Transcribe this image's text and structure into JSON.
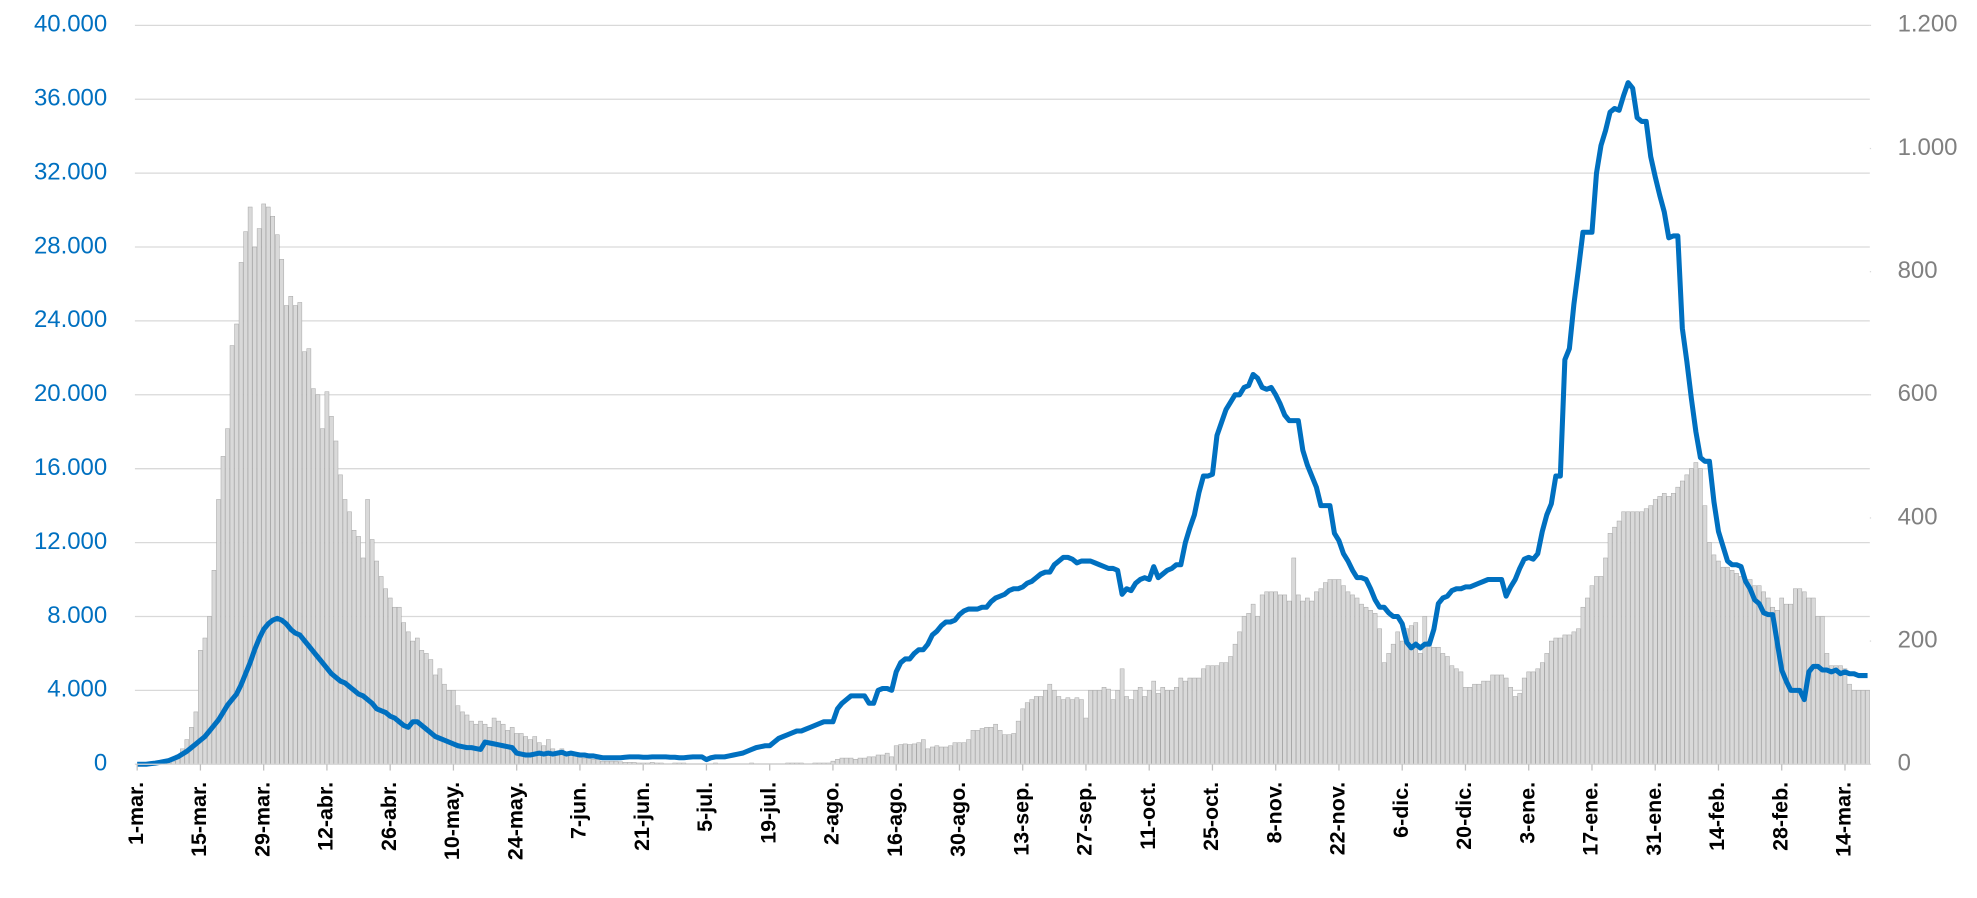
{
  "chart_data": {
    "type": "bar_line",
    "categories": [
      "1-mar.",
      null,
      null,
      null,
      null,
      null,
      null,
      null,
      null,
      null,
      null,
      null,
      null,
      null,
      "15-mar.",
      null,
      null,
      null,
      null,
      null,
      null,
      null,
      null,
      null,
      null,
      null,
      null,
      null,
      "29-mar.",
      null,
      null,
      null,
      null,
      null,
      null,
      null,
      null,
      null,
      null,
      null,
      null,
      null,
      "12-abr.",
      null,
      null,
      null,
      null,
      null,
      null,
      null,
      null,
      null,
      null,
      null,
      null,
      null,
      "26-abr.",
      null,
      null,
      null,
      null,
      null,
      null,
      null,
      null,
      null,
      null,
      null,
      null,
      null,
      "10-may.",
      null,
      null,
      null,
      null,
      null,
      null,
      null,
      null,
      null,
      null,
      null,
      null,
      null,
      "24-may.",
      null,
      null,
      null,
      null,
      null,
      null,
      null,
      null,
      null,
      null,
      null,
      null,
      null,
      "7-jun.",
      null,
      null,
      null,
      null,
      null,
      null,
      null,
      null,
      null,
      null,
      null,
      null,
      null,
      "21-jun.",
      null,
      null,
      null,
      null,
      null,
      null,
      null,
      null,
      null,
      null,
      null,
      null,
      null,
      "5-jul.",
      null,
      null,
      null,
      null,
      null,
      null,
      null,
      null,
      null,
      null,
      null,
      null,
      null,
      "19-jul.",
      null,
      null,
      null,
      null,
      null,
      null,
      null,
      null,
      null,
      null,
      null,
      null,
      null,
      "2-ago.",
      null,
      null,
      null,
      null,
      null,
      null,
      null,
      null,
      null,
      null,
      null,
      null,
      null,
      "16-ago.",
      null,
      null,
      null,
      null,
      null,
      null,
      null,
      null,
      null,
      null,
      null,
      null,
      null,
      "30-ago.",
      null,
      null,
      null,
      null,
      null,
      null,
      null,
      null,
      null,
      null,
      null,
      null,
      null,
      "13-sep.",
      null,
      null,
      null,
      null,
      null,
      null,
      null,
      null,
      null,
      null,
      null,
      null,
      null,
      "27-sep.",
      null,
      null,
      null,
      null,
      null,
      null,
      null,
      null,
      null,
      null,
      null,
      null,
      null,
      "11-oct.",
      null,
      null,
      null,
      null,
      null,
      null,
      null,
      null,
      null,
      null,
      null,
      null,
      null,
      "25-oct.",
      null,
      null,
      null,
      null,
      null,
      null,
      null,
      null,
      null,
      null,
      null,
      null,
      null,
      "8-nov.",
      null,
      null,
      null,
      null,
      null,
      null,
      null,
      null,
      null,
      null,
      null,
      null,
      null,
      "22-nov.",
      null,
      null,
      null,
      null,
      null,
      null,
      null,
      null,
      null,
      null,
      null,
      null,
      null,
      "6-dic.",
      null,
      null,
      null,
      null,
      null,
      null,
      null,
      null,
      null,
      null,
      null,
      null,
      null,
      "20-dic.",
      null,
      null,
      null,
      null,
      null,
      null,
      null,
      null,
      null,
      null,
      null,
      null,
      null,
      "3-ene.",
      null,
      null,
      null,
      null,
      null,
      null,
      null,
      null,
      null,
      null,
      null,
      null,
      null,
      "17-ene.",
      null,
      null,
      null,
      null,
      null,
      null,
      null,
      null,
      null,
      null,
      null,
      null,
      null,
      "31-ene.",
      null,
      null,
      null,
      null,
      null,
      null,
      null,
      null,
      null,
      null,
      null,
      null,
      null,
      "14-feb.",
      null,
      null,
      null,
      null,
      null,
      null,
      null,
      null,
      null,
      null,
      null,
      null,
      null,
      "28-feb.",
      null,
      null,
      null,
      null,
      null,
      null,
      null,
      null,
      null,
      null,
      null,
      null,
      null,
      "14-mar.",
      null,
      null,
      null,
      null,
      null
    ],
    "series": [
      {
        "type": "bar",
        "axis": "y2",
        "color": "#d9d9d9",
        "values": [
          0,
          0,
          0,
          0,
          0,
          0,
          0,
          2,
          5,
          15,
          25,
          40,
          60,
          85,
          185,
          205,
          240,
          315,
          430,
          500,
          545,
          680,
          715,
          815,
          865,
          905,
          840,
          870,
          910,
          905,
          890,
          860,
          820,
          745,
          760,
          745,
          750,
          670,
          675,
          610,
          600,
          545,
          605,
          565,
          525,
          470,
          430,
          410,
          380,
          370,
          335,
          430,
          365,
          330,
          305,
          285,
          270,
          255,
          255,
          230,
          215,
          200,
          205,
          185,
          180,
          170,
          145,
          155,
          130,
          120,
          120,
          95,
          85,
          80,
          70,
          65,
          70,
          65,
          60,
          75,
          70,
          65,
          55,
          60,
          50,
          50,
          45,
          40,
          45,
          35,
          30,
          40,
          25,
          20,
          25,
          20,
          15,
          15,
          12,
          10,
          10,
          8,
          8,
          5,
          5,
          5,
          5,
          4,
          3,
          3,
          3,
          2,
          2,
          2,
          3,
          2,
          2,
          1,
          1,
          2,
          2,
          2,
          1,
          1,
          1,
          1,
          1,
          1,
          2,
          1,
          1,
          1,
          1,
          1,
          1,
          1,
          2,
          1,
          1,
          1,
          1,
          1,
          1,
          1,
          2,
          2,
          2,
          2,
          1,
          1,
          2,
          2,
          2,
          2,
          5,
          8,
          10,
          10,
          10,
          8,
          10,
          10,
          12,
          12,
          15,
          15,
          18,
          12,
          30,
          32,
          33,
          32,
          33,
          35,
          40,
          25,
          28,
          30,
          28,
          28,
          30,
          35,
          35,
          35,
          40,
          55,
          55,
          58,
          60,
          60,
          65,
          55,
          48,
          48,
          50,
          70,
          90,
          100,
          105,
          110,
          110,
          120,
          130,
          120,
          110,
          105,
          108,
          105,
          108,
          105,
          75,
          120,
          120,
          120,
          125,
          122,
          105,
          120,
          155,
          110,
          105,
          120,
          125,
          110,
          120,
          135,
          115,
          125,
          120,
          120,
          125,
          140,
          135,
          140,
          140,
          140,
          155,
          160,
          160,
          160,
          165,
          165,
          175,
          195,
          215,
          240,
          245,
          260,
          240,
          275,
          280,
          280,
          280,
          275,
          275,
          265,
          335,
          275,
          265,
          270,
          265,
          280,
          285,
          295,
          300,
          300,
          300,
          290,
          280,
          275,
          270,
          260,
          255,
          250,
          245,
          220,
          165,
          180,
          195,
          215,
          200,
          220,
          225,
          230,
          180,
          240,
          200,
          190,
          190,
          180,
          175,
          160,
          155,
          150,
          125,
          125,
          130,
          130,
          135,
          135,
          145,
          145,
          145,
          140,
          125,
          110,
          115,
          140,
          150,
          150,
          155,
          165,
          180,
          200,
          205,
          205,
          210,
          210,
          215,
          220,
          255,
          270,
          290,
          305,
          305,
          335,
          375,
          385,
          395,
          410,
          410,
          410,
          410,
          410,
          415,
          420,
          430,
          435,
          440,
          435,
          440,
          450,
          460,
          470,
          480,
          490,
          480,
          420,
          360,
          340,
          330,
          320,
          320,
          315,
          310,
          305,
          300,
          300,
          290,
          290,
          280,
          270,
          255,
          250,
          270,
          260,
          260,
          285,
          285,
          280,
          270,
          270,
          240,
          240,
          180,
          160,
          160,
          160,
          155,
          130,
          120,
          120,
          120,
          120
        ]
      },
      {
        "type": "line",
        "axis": "y",
        "color": "#0070c0",
        "values": [
          0,
          0,
          0,
          30,
          60,
          100,
          150,
          200,
          300,
          400,
          550,
          700,
          900,
          1100,
          1300,
          1500,
          1800,
          2100,
          2400,
          2800,
          3200,
          3500,
          3800,
          4300,
          4900,
          5500,
          6200,
          6800,
          7300,
          7600,
          7800,
          7900,
          7800,
          7600,
          7300,
          7100,
          7000,
          6700,
          6400,
          6100,
          5800,
          5500,
          5200,
          4900,
          4700,
          4500,
          4400,
          4200,
          4000,
          3800,
          3700,
          3500,
          3300,
          3000,
          2900,
          2800,
          2600,
          2500,
          2300,
          2100,
          2000,
          2300,
          2300,
          2100,
          1900,
          1700,
          1500,
          1400,
          1300,
          1200,
          1100,
          1000,
          950,
          900,
          900,
          850,
          800,
          1200,
          1150,
          1100,
          1050,
          1000,
          950,
          900,
          600,
          550,
          500,
          500,
          550,
          600,
          550,
          600,
          550,
          600,
          650,
          550,
          600,
          550,
          500,
          500,
          450,
          450,
          400,
          350,
          350,
          350,
          350,
          350,
          380,
          400,
          400,
          400,
          380,
          380,
          400,
          400,
          400,
          400,
          380,
          380,
          350,
          350,
          380,
          400,
          400,
          400,
          250,
          350,
          400,
          400,
          400,
          450,
          500,
          550,
          600,
          700,
          800,
          900,
          950,
          1000,
          1000,
          1200,
          1400,
          1500,
          1600,
          1700,
          1800,
          1800,
          1900,
          2000,
          2100,
          2200,
          2300,
          2300,
          2300,
          3000,
          3300,
          3500,
          3700,
          3700,
          3700,
          3700,
          3300,
          3300,
          4000,
          4100,
          4100,
          4000,
          5000,
          5500,
          5700,
          5700,
          6000,
          6200,
          6200,
          6500,
          7000,
          7200,
          7500,
          7700,
          7700,
          7800,
          8100,
          8300,
          8400,
          8400,
          8400,
          8500,
          8500,
          8800,
          9000,
          9100,
          9200,
          9400,
          9500,
          9500,
          9600,
          9800,
          9900,
          10100,
          10300,
          10400,
          10400,
          10800,
          11000,
          11200,
          11200,
          11100,
          10900,
          11000,
          11000,
          11000,
          10900,
          10800,
          10700,
          10600,
          10600,
          10500,
          9200,
          9500,
          9400,
          9800,
          10000,
          10100,
          10000,
          10700,
          10100,
          10300,
          10500,
          10600,
          10800,
          10800,
          12000,
          12800,
          13500,
          14700,
          15600,
          15600,
          15700,
          17800,
          18500,
          19200,
          19600,
          20000,
          20000,
          20400,
          20500,
          21100,
          20900,
          20400,
          20300,
          20400,
          20000,
          19500,
          18900,
          18600,
          18600,
          18600,
          17000,
          16200,
          15600,
          15000,
          14000,
          14000,
          14000,
          12500,
          12100,
          11400,
          11000,
          10500,
          10100,
          10100,
          10000,
          9500,
          8900,
          8500,
          8500,
          8200,
          8000,
          8000,
          7600,
          6600,
          6300,
          6500,
          6300,
          6500,
          6500,
          7300,
          8700,
          9000,
          9100,
          9400,
          9500,
          9500,
          9600,
          9600,
          9700,
          9800,
          9900,
          10000,
          10000,
          10000,
          10000,
          9100,
          9600,
          10000,
          10600,
          11100,
          11200,
          11100,
          11400,
          12600,
          13500,
          14100,
          15600,
          15600,
          21900,
          22500,
          24900,
          26800,
          28800,
          28800,
          28800,
          32000,
          33500,
          34300,
          35300,
          35500,
          35400,
          36200,
          36900,
          36600,
          35000,
          34800,
          34800,
          32900,
          31800,
          30800,
          29900,
          28500,
          28600,
          28600,
          23600,
          21800,
          19800,
          18000,
          16600,
          16400,
          16400,
          14200,
          12600,
          11800,
          11000,
          10800,
          10800,
          10700,
          9900,
          9500,
          8900,
          8700,
          8200,
          8100,
          8100,
          6600,
          5100,
          4500,
          4000,
          4000,
          4000,
          3500,
          5000,
          5300,
          5300,
          5100,
          5100,
          5000,
          5100,
          4900,
          5000,
          4900,
          4900,
          4800,
          4800,
          4800
        ]
      }
    ],
    "ylim": [
      0,
      40000
    ],
    "yticks": [
      0,
      {
        "value": 4000,
        "label": "4.000"
      },
      {
        "value": 8000,
        "label": "8.000"
      },
      {
        "value": 12000,
        "label": "12.000"
      },
      {
        "value": 16000,
        "label": "16.000"
      },
      {
        "value": 20000,
        "label": "20.000"
      },
      {
        "value": 24000,
        "label": "24.000"
      },
      {
        "value": 28000,
        "label": "28.000"
      },
      {
        "value": 32000,
        "label": "32.000"
      },
      {
        "value": 36000,
        "label": "36.000"
      },
      {
        "value": 40000,
        "label": "40.000"
      }
    ],
    "y2lim": [
      0,
      1200
    ],
    "y2ticks": [
      0,
      200,
      400,
      600,
      800,
      {
        "value": 1000,
        "label": "1.000"
      },
      {
        "value": 1200,
        "label": "1.200"
      }
    ],
    "grid": true
  }
}
